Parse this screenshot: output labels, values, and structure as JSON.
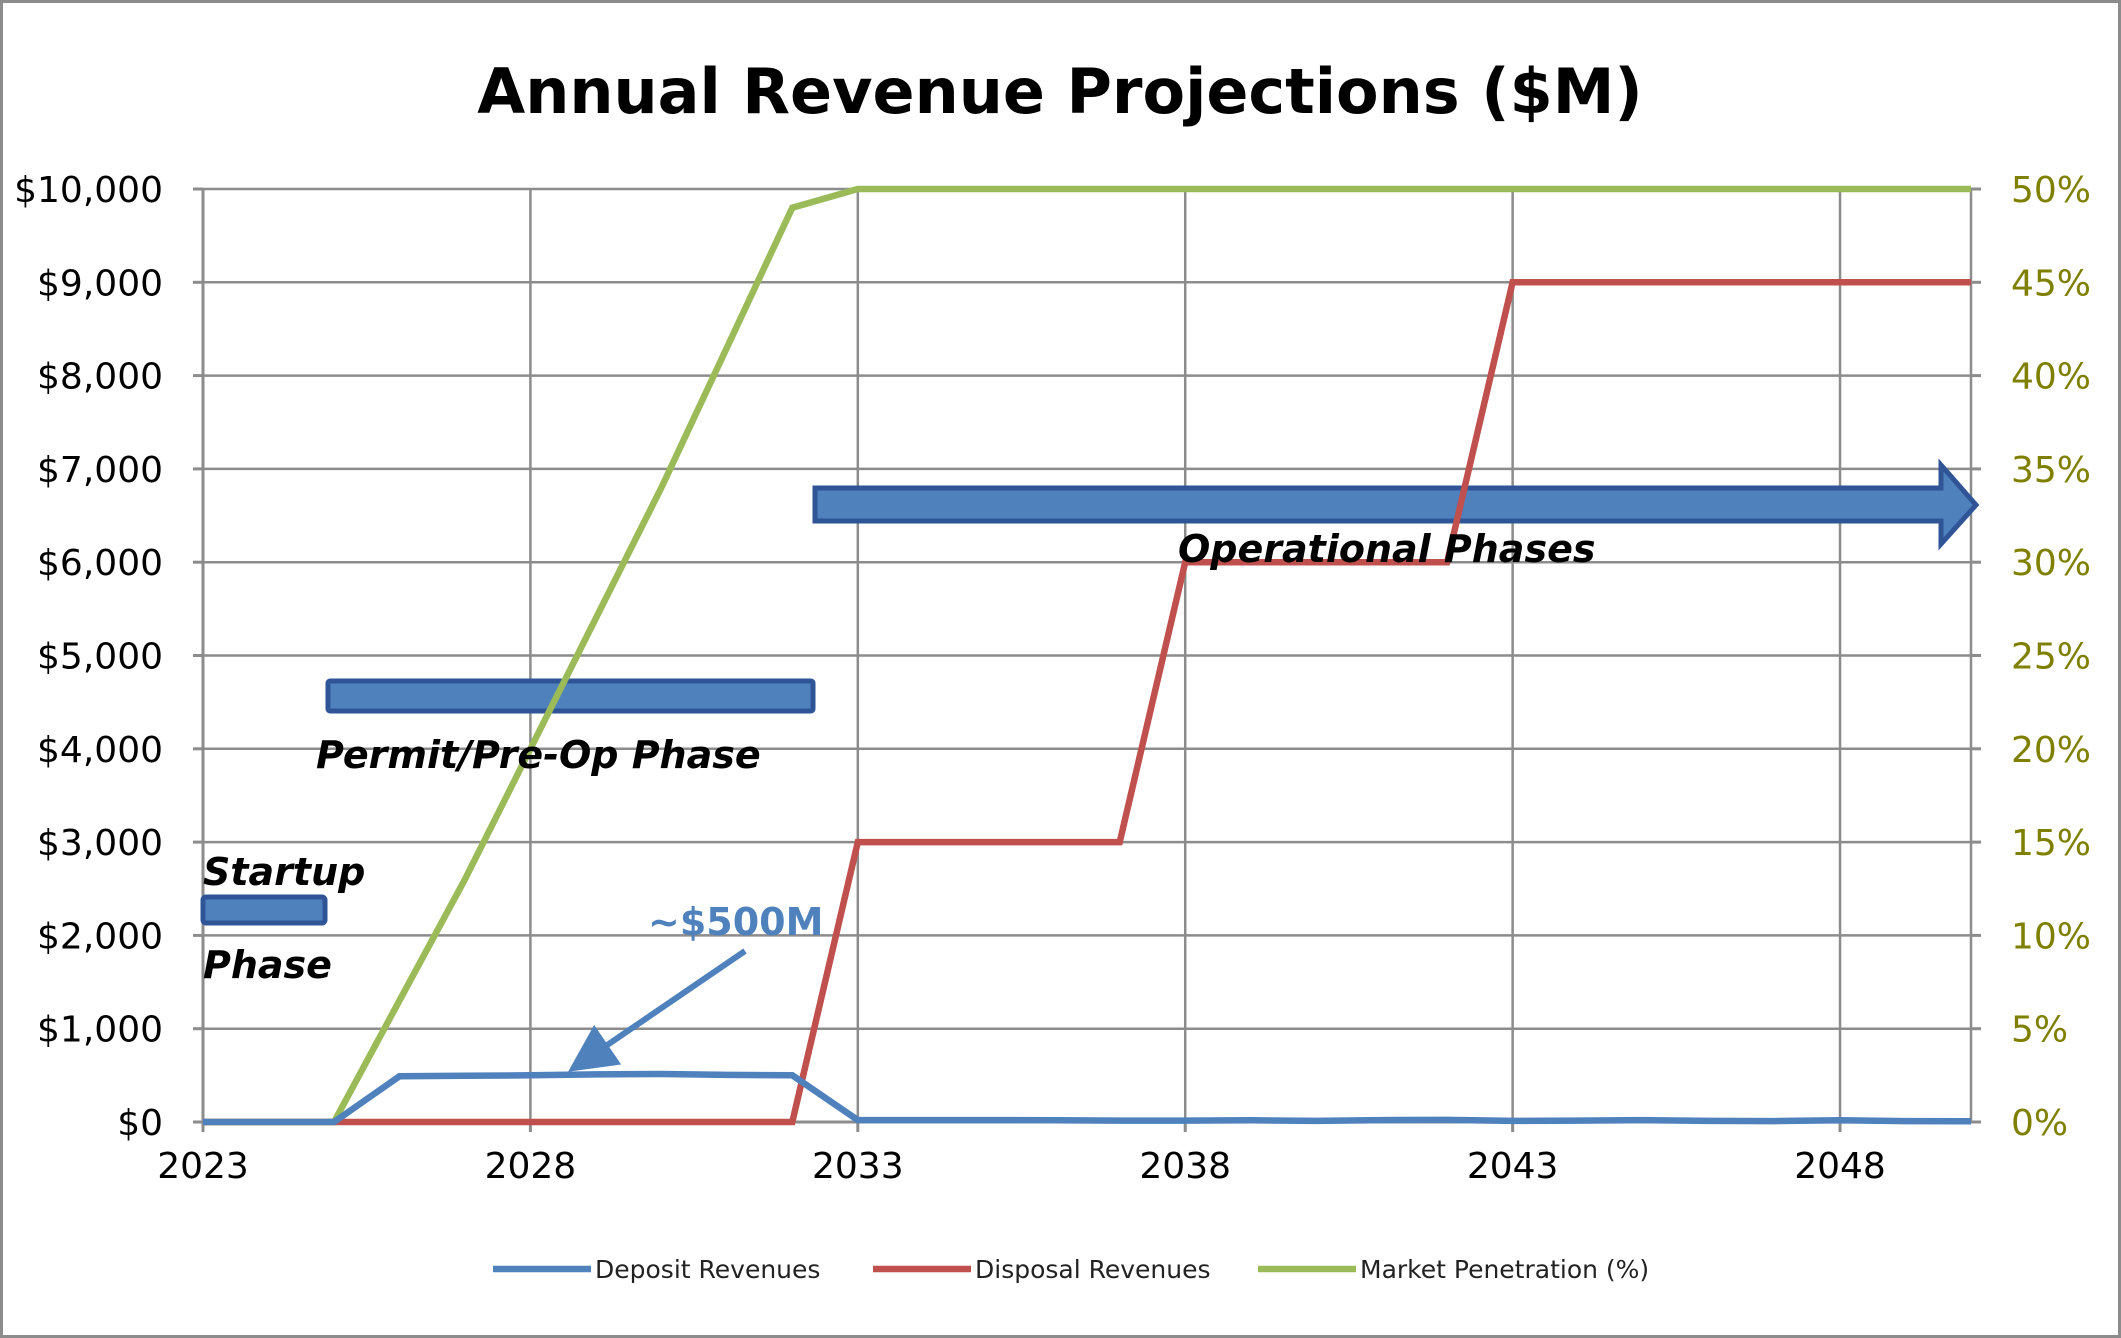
{
  "colors": {
    "deposit": "#4f81bd",
    "disposal": "#c0504d",
    "penetration": "#9bbb59",
    "right_axis_text": "#7f7f00",
    "grid": "#8c8c8c",
    "phase_bar_fill": "#4f81bd",
    "phase_bar_stroke": "#2f5597"
  },
  "chart_data": {
    "type": "line",
    "title": "Annual Revenue Projections ($M)",
    "xlabel": "",
    "ylabel": "",
    "xlim": [
      2023,
      2050
    ],
    "x_ticks": [
      2023,
      2028,
      2033,
      2038,
      2043,
      2048
    ],
    "x_tick_labels": [
      "2023",
      "2028",
      "2033",
      "2038",
      "2043",
      "2048"
    ],
    "ylim": [
      0,
      10000
    ],
    "y_ticks": [
      0,
      1000,
      2000,
      3000,
      4000,
      5000,
      6000,
      7000,
      8000,
      9000,
      10000
    ],
    "y_tick_labels": [
      "$0",
      "$1,000",
      "$2,000",
      "$3,000",
      "$4,000",
      "$5,000",
      "$6,000",
      "$7,000",
      "$8,000",
      "$9,000",
      "$10,000"
    ],
    "y2lim": [
      0,
      50
    ],
    "y2_ticks": [
      0,
      5,
      10,
      15,
      20,
      25,
      30,
      35,
      40,
      45,
      50
    ],
    "y2_tick_labels": [
      "0%",
      "5%",
      "10%",
      "15%",
      "20%",
      "25%",
      "30%",
      "35%",
      "40%",
      "45%",
      "50%"
    ],
    "grid": true,
    "legend_position": "bottom",
    "series": [
      {
        "name": "Deposit Revenues",
        "axis": "left",
        "color_key": "deposit",
        "points": [
          [
            2023,
            0
          ],
          [
            2024,
            0
          ],
          [
            2025,
            0
          ],
          [
            2026,
            490
          ],
          [
            2027,
            495
          ],
          [
            2028,
            500
          ],
          [
            2029,
            510
          ],
          [
            2030,
            515
          ],
          [
            2031,
            505
          ],
          [
            2032,
            500
          ],
          [
            2033,
            20
          ],
          [
            2034,
            20
          ],
          [
            2035,
            20
          ],
          [
            2036,
            18
          ],
          [
            2037,
            15
          ],
          [
            2038,
            15
          ],
          [
            2039,
            18
          ],
          [
            2040,
            12
          ],
          [
            2041,
            20
          ],
          [
            2042,
            22
          ],
          [
            2043,
            12
          ],
          [
            2044,
            15
          ],
          [
            2045,
            20
          ],
          [
            2046,
            12
          ],
          [
            2047,
            10
          ],
          [
            2048,
            18
          ],
          [
            2049,
            10
          ],
          [
            2050,
            8
          ]
        ]
      },
      {
        "name": "Disposal Revenues",
        "axis": "left",
        "color_key": "disposal",
        "points": [
          [
            2023,
            0
          ],
          [
            2024,
            0
          ],
          [
            2025,
            0
          ],
          [
            2026,
            0
          ],
          [
            2027,
            0
          ],
          [
            2028,
            0
          ],
          [
            2029,
            0
          ],
          [
            2030,
            0
          ],
          [
            2031,
            0
          ],
          [
            2032,
            0
          ],
          [
            2033,
            3000
          ],
          [
            2034,
            3000
          ],
          [
            2035,
            3000
          ],
          [
            2036,
            3000
          ],
          [
            2037,
            3000
          ],
          [
            2038,
            6000
          ],
          [
            2039,
            6000
          ],
          [
            2040,
            6000
          ],
          [
            2041,
            6000
          ],
          [
            2042,
            6000
          ],
          [
            2043,
            9000
          ],
          [
            2044,
            9000
          ],
          [
            2045,
            9000
          ],
          [
            2046,
            9000
          ],
          [
            2047,
            9000
          ],
          [
            2048,
            9000
          ],
          [
            2049,
            9000
          ],
          [
            2050,
            9000
          ]
        ]
      },
      {
        "name": "Market Penetration (%)",
        "axis": "right",
        "color_key": "penetration",
        "points": [
          [
            2023,
            0
          ],
          [
            2024,
            0
          ],
          [
            2025,
            0
          ],
          [
            2026,
            6.5
          ],
          [
            2027,
            13
          ],
          [
            2028,
            20
          ],
          [
            2029,
            27
          ],
          [
            2030,
            34
          ],
          [
            2031,
            41.5
          ],
          [
            2032,
            49
          ],
          [
            2033,
            50
          ],
          [
            2034,
            50
          ],
          [
            2035,
            50
          ],
          [
            2036,
            50
          ],
          [
            2037,
            50
          ],
          [
            2038,
            50
          ],
          [
            2039,
            50
          ],
          [
            2040,
            50
          ],
          [
            2041,
            50
          ],
          [
            2042,
            50
          ],
          [
            2043,
            50
          ],
          [
            2044,
            50
          ],
          [
            2045,
            50
          ],
          [
            2046,
            50
          ],
          [
            2047,
            50
          ],
          [
            2048,
            50
          ],
          [
            2049,
            50
          ],
          [
            2050,
            50
          ]
        ]
      }
    ],
    "annotations": {
      "startup_line1": "Startup",
      "startup_line2": "Phase",
      "permit": "Permit/Pre-Op Phase",
      "operational": "Operational Phases",
      "callout": "~$500M"
    }
  }
}
